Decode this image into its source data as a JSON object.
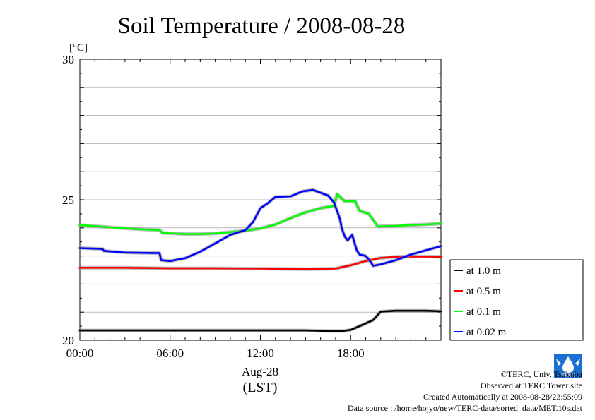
{
  "chart_data": {
    "type": "line",
    "title": "Soil Temperature / 2008-08-28",
    "ylabel_unit": "[°C]",
    "xlabel_date": "Aug-28",
    "xlabel_tz": "(LST)",
    "ylim": [
      20,
      30
    ],
    "xlim": [
      0,
      24
    ],
    "y_ticks": [
      "20",
      "25",
      "30"
    ],
    "x_ticks": [
      {
        "hour": 0,
        "label": "00:00"
      },
      {
        "hour": 6,
        "label": "06:00"
      },
      {
        "hour": 12,
        "label": "12:00"
      },
      {
        "hour": 18,
        "label": "18:00"
      }
    ],
    "grid": true,
    "legend_position": "right",
    "series": [
      {
        "name": "at 1.0 m",
        "color": "#000000",
        "x": [
          0,
          3,
          6,
          9,
          12,
          15,
          16.5,
          17.5,
          18,
          18.8,
          19.5,
          20,
          21,
          22,
          23,
          24
        ],
        "y": [
          20.35,
          20.35,
          20.35,
          20.35,
          20.35,
          20.35,
          20.33,
          20.33,
          20.37,
          20.55,
          20.72,
          21.02,
          21.05,
          21.05,
          21.05,
          21.03
        ]
      },
      {
        "name": "at 0.5 m",
        "color": "#ff0000",
        "x": [
          0,
          3,
          6,
          9,
          12,
          15,
          17,
          18,
          19,
          20,
          21,
          22,
          23,
          24
        ],
        "y": [
          22.58,
          22.58,
          22.56,
          22.56,
          22.55,
          22.53,
          22.55,
          22.67,
          22.82,
          22.93,
          22.97,
          22.98,
          22.98,
          22.97
        ]
      },
      {
        "name": "at 0.1 m",
        "color": "#00ff00",
        "x": [
          0,
          2,
          4,
          5.3,
          5.5,
          7,
          8,
          9,
          10,
          11,
          12,
          13,
          14,
          15,
          16,
          16.9,
          17.1,
          17.6,
          18.3,
          18.6,
          19.2,
          19.5,
          19.8,
          21,
          22,
          23,
          24
        ],
        "y": [
          24.1,
          24.02,
          23.95,
          23.92,
          23.82,
          23.78,
          23.78,
          23.8,
          23.85,
          23.9,
          23.98,
          24.12,
          24.35,
          24.55,
          24.7,
          24.78,
          25.2,
          24.95,
          24.95,
          24.6,
          24.5,
          24.28,
          24.05,
          24.07,
          24.1,
          24.12,
          24.15
        ]
      },
      {
        "name": "at 0.02 m",
        "color": "#0000ff",
        "x": [
          0,
          1.5,
          1.6,
          3,
          5.3,
          5.4,
          6,
          7,
          8,
          9,
          10,
          11,
          11.5,
          12,
          12.5,
          13,
          14,
          14.8,
          15.5,
          16,
          16.5,
          16.9,
          17.3,
          17.4,
          17.6,
          17.8,
          18.1,
          18.4,
          18.6,
          19,
          19.2,
          19.5,
          20,
          21,
          22,
          23,
          24
        ],
        "y": [
          23.28,
          23.25,
          23.18,
          23.12,
          23.1,
          22.85,
          22.82,
          22.92,
          23.15,
          23.45,
          23.75,
          23.92,
          24.2,
          24.7,
          24.88,
          25.1,
          25.12,
          25.3,
          25.35,
          25.25,
          25.15,
          24.9,
          24.3,
          24.0,
          23.7,
          23.55,
          23.75,
          23.2,
          23.05,
          23.0,
          22.88,
          22.65,
          22.7,
          22.85,
          23.05,
          23.2,
          23.35
        ]
      }
    ]
  },
  "footer": {
    "copyright": "©TERC, Univ. Tsukuba",
    "observed": "Observed at TERC Tower site",
    "created": "Created Automatically at 2008-08-28/23:55:09",
    "source": "Data source : /home/hojyo/new/TERC-data/sorted_data/MET.10s.dat"
  },
  "logo_text": "TERC"
}
